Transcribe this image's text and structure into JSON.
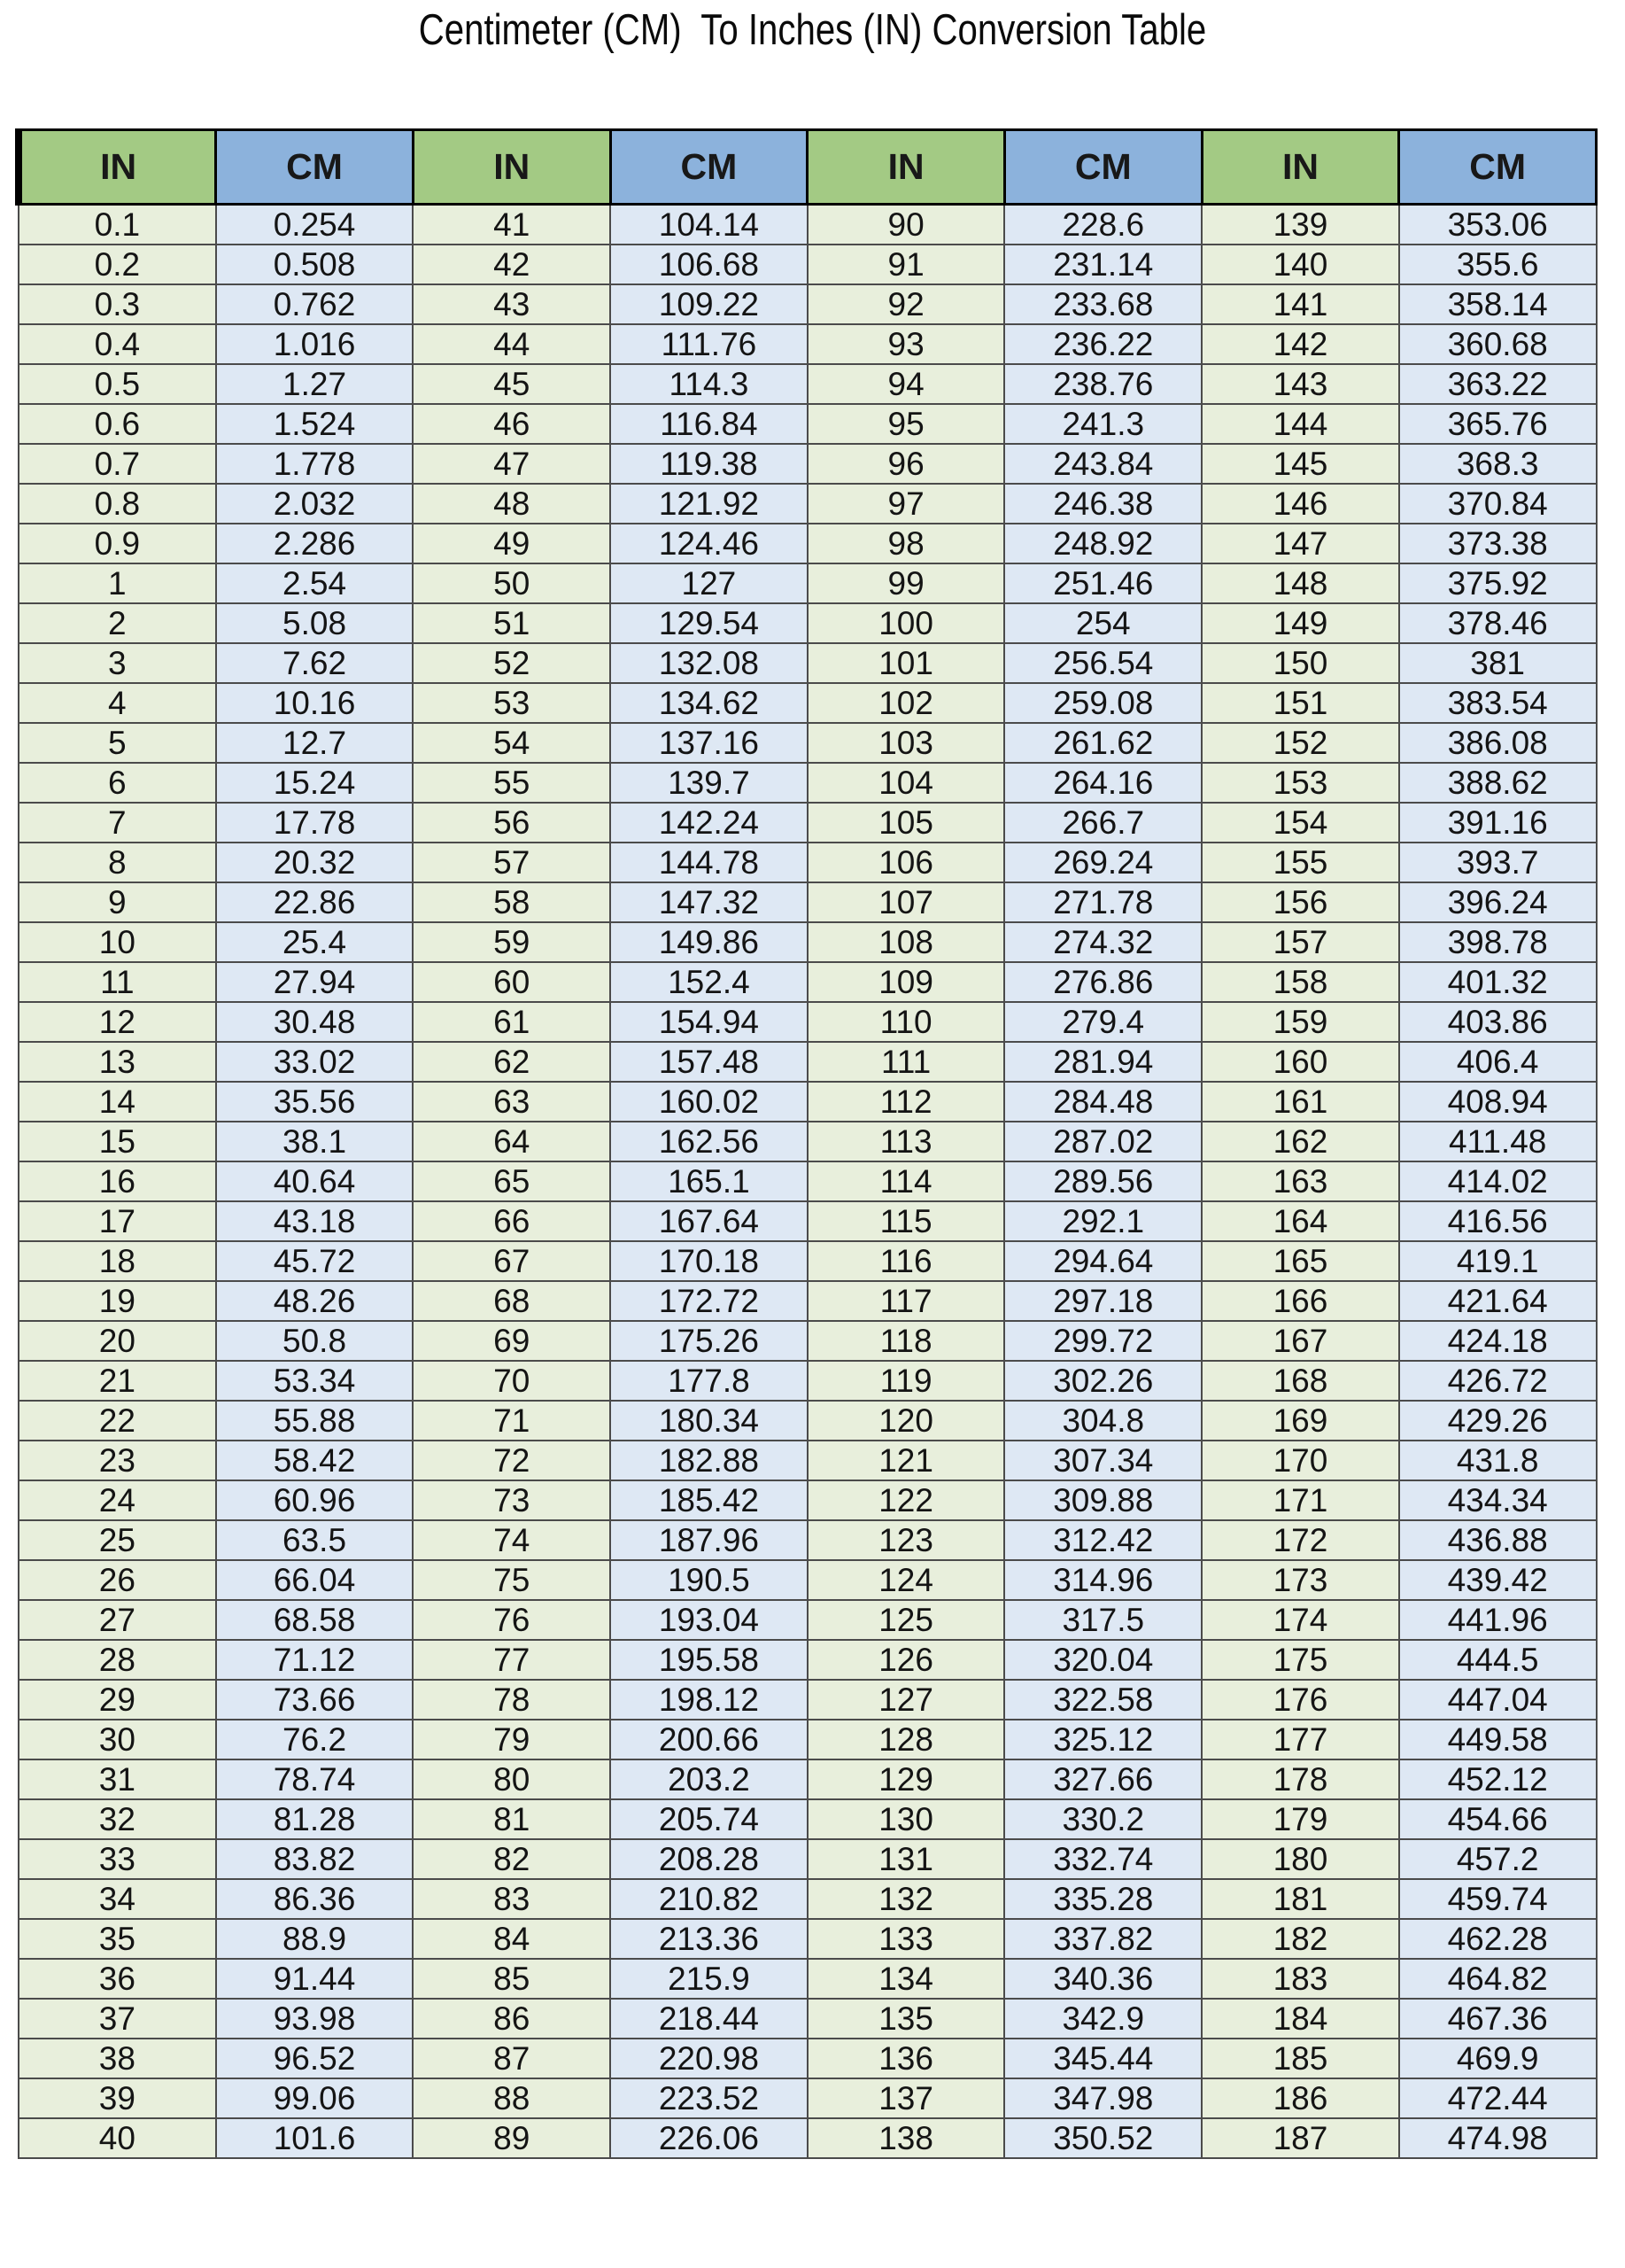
{
  "title": "Centimeter (CM)  To Inches (IN) Conversion Table",
  "colors": {
    "header_green": "#A3CA84",
    "header_blue": "#8CB2DC",
    "cell_green": "#E8EFDC",
    "cell_blue": "#DEE8F4",
    "grid_dark": "#4B4B4B"
  },
  "chart_data": {
    "type": "table",
    "header_labels": [
      "IN",
      "CM",
      "IN",
      "CM",
      "IN",
      "CM",
      "IN",
      "CM"
    ],
    "pairs": [
      {
        "in": [
          0.1,
          0.2,
          0.3,
          0.4,
          0.5,
          0.6,
          0.7,
          0.8,
          0.9,
          1,
          2,
          3,
          4,
          5,
          6,
          7,
          8,
          9,
          10,
          11,
          12,
          13,
          14,
          15,
          16,
          17,
          18,
          19,
          20,
          21,
          22,
          23,
          24,
          25,
          26,
          27,
          28,
          29,
          30,
          31,
          32,
          33,
          34,
          35,
          36,
          37,
          38,
          39,
          40
        ],
        "cm": [
          0.254,
          0.508,
          0.762,
          1.016,
          1.27,
          1.524,
          1.778,
          2.032,
          2.286,
          2.54,
          5.08,
          7.62,
          10.16,
          12.7,
          15.24,
          17.78,
          20.32,
          22.86,
          25.4,
          27.94,
          30.48,
          33.02,
          35.56,
          38.1,
          40.64,
          43.18,
          45.72,
          48.26,
          50.8,
          53.34,
          55.88,
          58.42,
          60.96,
          63.5,
          66.04,
          68.58,
          71.12,
          73.66,
          76.2,
          78.74,
          81.28,
          83.82,
          86.36,
          88.9,
          91.44,
          93.98,
          96.52,
          99.06,
          101.6
        ]
      },
      {
        "in": [
          41,
          42,
          43,
          44,
          45,
          46,
          47,
          48,
          49,
          50,
          51,
          52,
          53,
          54,
          55,
          56,
          57,
          58,
          59,
          60,
          61,
          62,
          63,
          64,
          65,
          66,
          67,
          68,
          69,
          70,
          71,
          72,
          73,
          74,
          75,
          76,
          77,
          78,
          79,
          80,
          81,
          82,
          83,
          84,
          85,
          86,
          87,
          88,
          89
        ],
        "cm": [
          104.14,
          106.68,
          109.22,
          111.76,
          114.3,
          116.84,
          119.38,
          121.92,
          124.46,
          127,
          129.54,
          132.08,
          134.62,
          137.16,
          139.7,
          142.24,
          144.78,
          147.32,
          149.86,
          152.4,
          154.94,
          157.48,
          160.02,
          162.56,
          165.1,
          167.64,
          170.18,
          172.72,
          175.26,
          177.8,
          180.34,
          182.88,
          185.42,
          187.96,
          190.5,
          193.04,
          195.58,
          198.12,
          200.66,
          203.2,
          205.74,
          208.28,
          210.82,
          213.36,
          215.9,
          218.44,
          220.98,
          223.52,
          226.06
        ]
      },
      {
        "in": [
          90,
          91,
          92,
          93,
          94,
          95,
          96,
          97,
          98,
          99,
          100,
          101,
          102,
          103,
          104,
          105,
          106,
          107,
          108,
          109,
          110,
          111,
          112,
          113,
          114,
          115,
          116,
          117,
          118,
          119,
          120,
          121,
          122,
          123,
          124,
          125,
          126,
          127,
          128,
          129,
          130,
          131,
          132,
          133,
          134,
          135,
          136,
          137,
          138
        ],
        "cm": [
          228.6,
          231.14,
          233.68,
          236.22,
          238.76,
          241.3,
          243.84,
          246.38,
          248.92,
          251.46,
          254,
          256.54,
          259.08,
          261.62,
          264.16,
          266.7,
          269.24,
          271.78,
          274.32,
          276.86,
          279.4,
          281.94,
          284.48,
          287.02,
          289.56,
          292.1,
          294.64,
          297.18,
          299.72,
          302.26,
          304.8,
          307.34,
          309.88,
          312.42,
          314.96,
          317.5,
          320.04,
          322.58,
          325.12,
          327.66,
          330.2,
          332.74,
          335.28,
          337.82,
          340.36,
          342.9,
          345.44,
          347.98,
          350.52
        ]
      },
      {
        "in": [
          139,
          140,
          141,
          142,
          143,
          144,
          145,
          146,
          147,
          148,
          149,
          150,
          151,
          152,
          153,
          154,
          155,
          156,
          157,
          158,
          159,
          160,
          161,
          162,
          163,
          164,
          165,
          166,
          167,
          168,
          169,
          170,
          171,
          172,
          173,
          174,
          175,
          176,
          177,
          178,
          179,
          180,
          181,
          182,
          183,
          184,
          185,
          186,
          187
        ],
        "cm": [
          353.06,
          355.6,
          358.14,
          360.68,
          363.22,
          365.76,
          368.3,
          370.84,
          373.38,
          375.92,
          378.46,
          381,
          383.54,
          386.08,
          388.62,
          391.16,
          393.7,
          396.24,
          398.78,
          401.32,
          403.86,
          406.4,
          408.94,
          411.48,
          414.02,
          416.56,
          419.1,
          421.64,
          424.18,
          426.72,
          429.26,
          431.8,
          434.34,
          436.88,
          439.42,
          441.96,
          444.5,
          447.04,
          449.58,
          452.12,
          454.66,
          457.2,
          459.74,
          462.28,
          464.82,
          467.36,
          469.9,
          472.44,
          474.98
        ]
      }
    ]
  }
}
